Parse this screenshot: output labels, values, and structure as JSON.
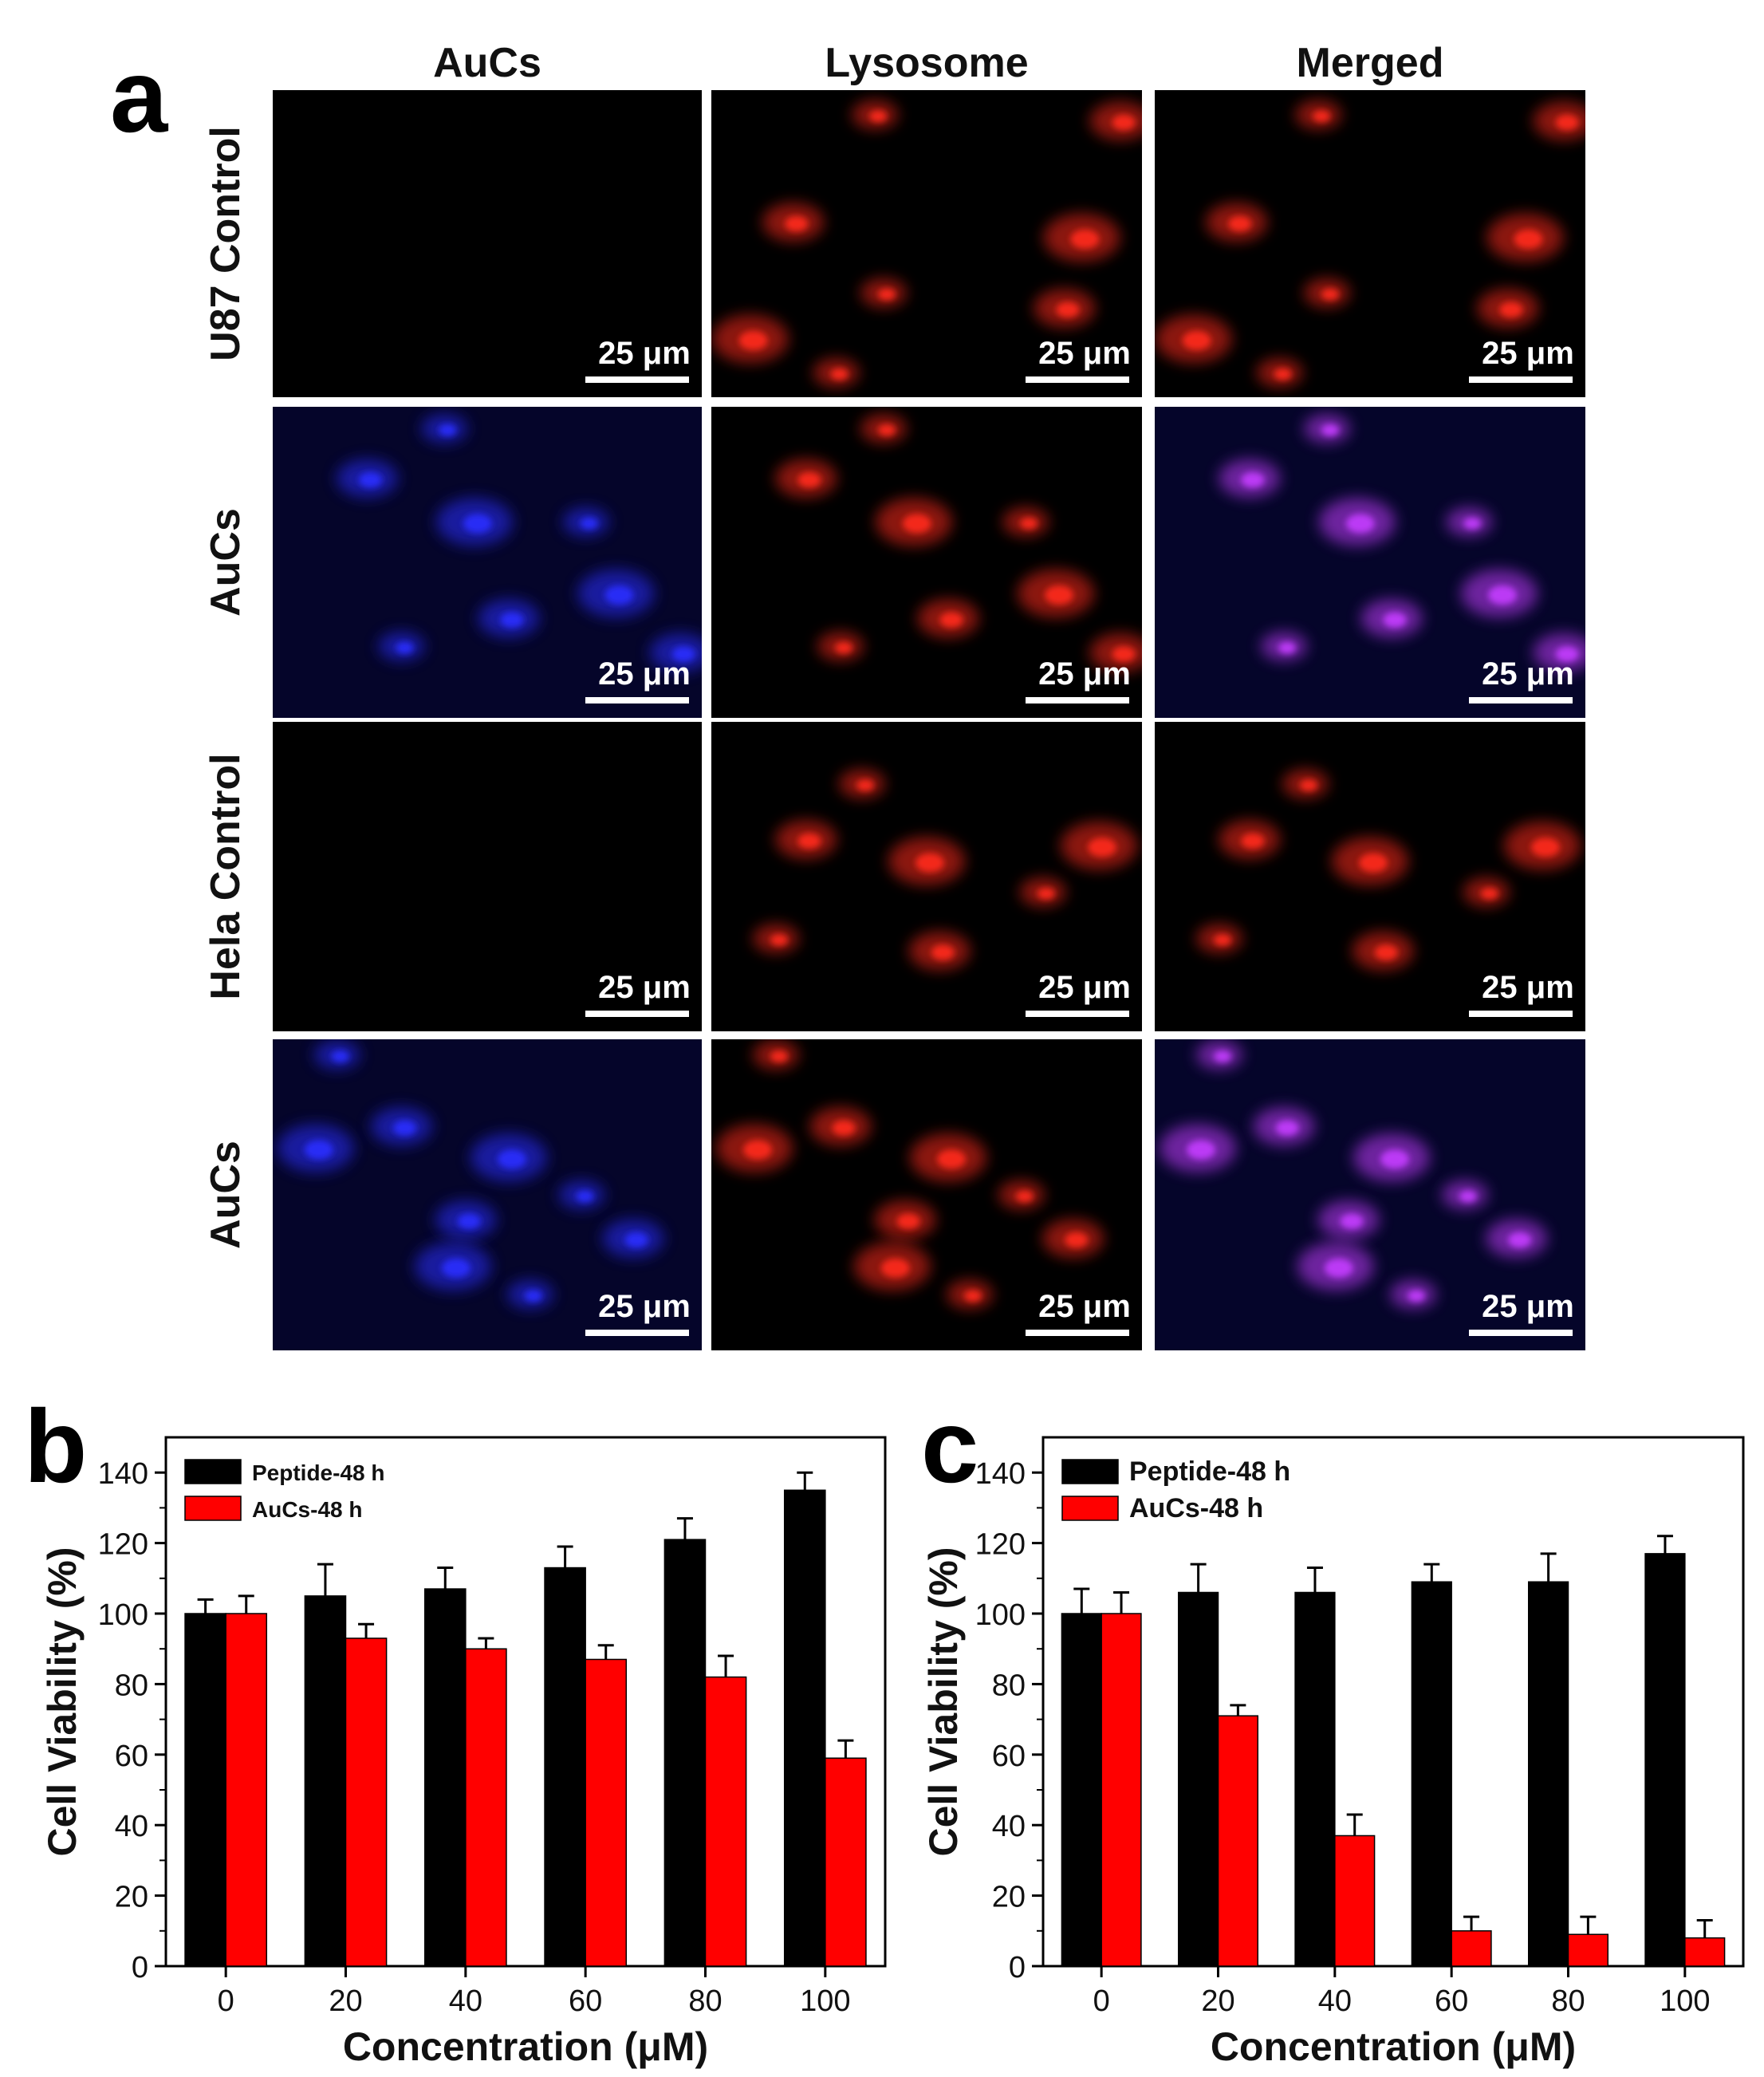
{
  "panel_a": {
    "label": "a",
    "columns": [
      "AuCs",
      "Lysosome",
      "Merged"
    ],
    "rows": [
      "U87 Control",
      "AuCs",
      "Hela Control",
      "AuCs"
    ],
    "scale_bar": "25 μm",
    "images": [
      {
        "row": 0,
        "channels": {
          "blue": "none",
          "red": "present"
        }
      },
      {
        "row": 1,
        "channels": {
          "blue": "present",
          "red": "present"
        }
      },
      {
        "row": 2,
        "channels": {
          "blue": "none",
          "red": "present"
        }
      },
      {
        "row": 3,
        "channels": {
          "blue": "present",
          "red": "present"
        }
      }
    ],
    "colors": {
      "blue": "#2a2dff",
      "red": "#ff2a1a",
      "merged": "#c43cff"
    }
  },
  "chart_data": [
    {
      "panel_label": "b",
      "type": "bar",
      "categories": [
        "0",
        "20",
        "40",
        "60",
        "80",
        "100"
      ],
      "series": [
        {
          "name": "Peptide-48 h",
          "color": "#000000",
          "values": [
            100,
            105,
            107,
            113,
            121,
            135
          ],
          "errors": [
            4,
            9,
            6,
            6,
            6,
            5
          ]
        },
        {
          "name": "AuCs-48 h",
          "color": "#ff0000",
          "values": [
            100,
            93,
            90,
            87,
            82,
            59
          ],
          "errors": [
            5,
            4,
            3,
            4,
            6,
            5
          ]
        }
      ],
      "xlabel": "Concentration (μM)",
      "ylabel": "Cell Viability (%)",
      "yticks": [
        0,
        20,
        40,
        60,
        80,
        100,
        120,
        140
      ],
      "ylim": [
        0,
        150
      ],
      "legend": "top-left"
    },
    {
      "panel_label": "c",
      "type": "bar",
      "categories": [
        "0",
        "20",
        "40",
        "60",
        "80",
        "100"
      ],
      "series": [
        {
          "name": "Peptide-48 h",
          "color": "#000000",
          "values": [
            100,
            106,
            106,
            109,
            109,
            117
          ],
          "errors": [
            7,
            8,
            7,
            5,
            8,
            5
          ]
        },
        {
          "name": "AuCs-48 h",
          "color": "#ff0000",
          "values": [
            100,
            71,
            37,
            10,
            9,
            8
          ],
          "errors": [
            6,
            3,
            6,
            4,
            5,
            5
          ]
        }
      ],
      "xlabel": "Concentration (μM)",
      "ylabel": "Cell Viability (%)",
      "yticks": [
        0,
        20,
        40,
        60,
        80,
        100,
        120,
        140
      ],
      "ylim": [
        0,
        150
      ],
      "legend": "top-left"
    }
  ]
}
